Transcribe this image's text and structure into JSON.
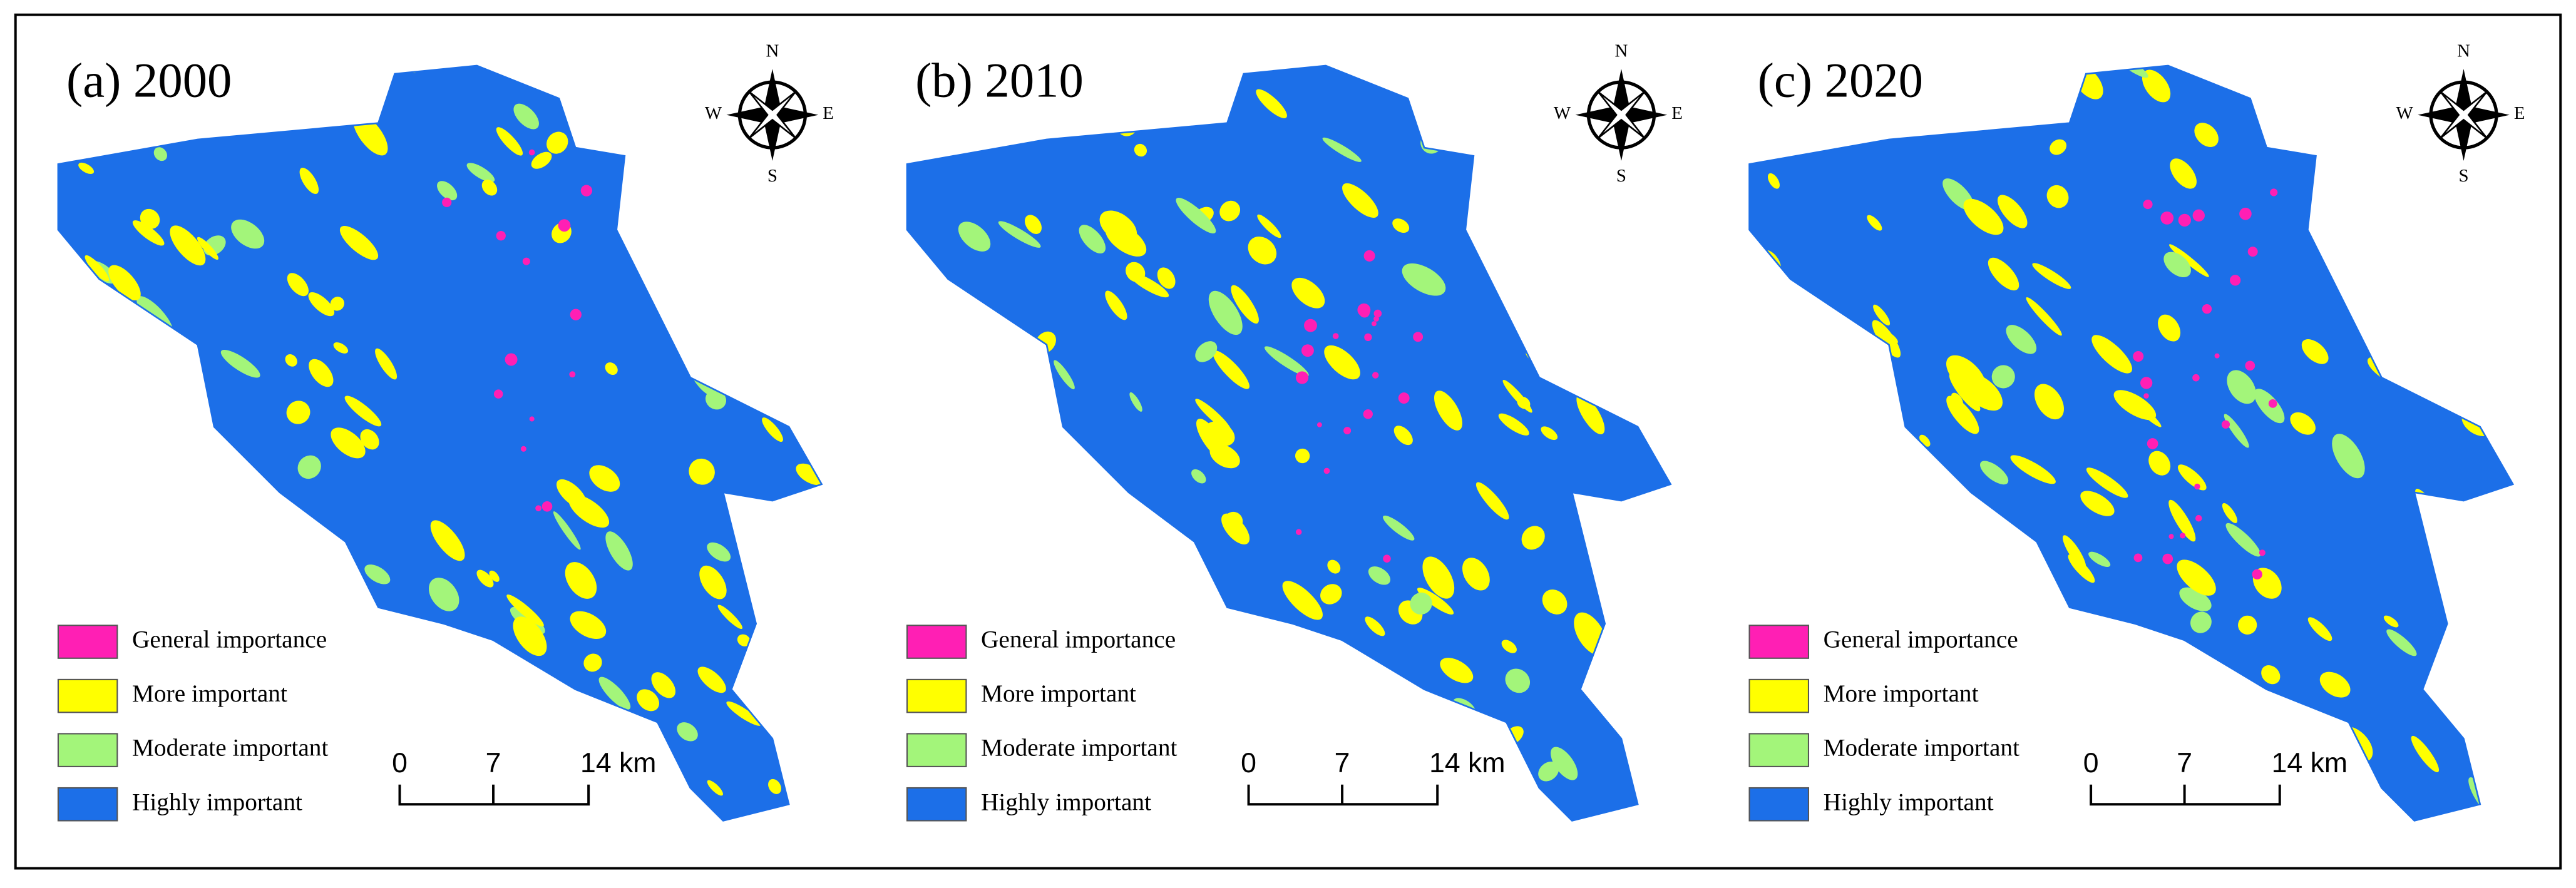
{
  "panels": [
    {
      "title": "(a) 2000",
      "compass": {
        "n": "N",
        "s": "S",
        "e": "E",
        "w": "W"
      },
      "legend": [
        {
          "label": "General importance",
          "color": "#ff1fb4"
        },
        {
          "label": "More important",
          "color": "#ffff00"
        },
        {
          "label": "Moderate important",
          "color": "#a3f57a"
        },
        {
          "label": "Highly important",
          "color": "#1c6fe8"
        }
      ],
      "scale": [
        "0",
        "7",
        "14 km"
      ]
    },
    {
      "title": "(b) 2010",
      "compass": {
        "n": "N",
        "s": "S",
        "e": "E",
        "w": "W"
      },
      "legend": [
        {
          "label": "General importance",
          "color": "#ff1fb4"
        },
        {
          "label": "More important",
          "color": "#ffff00"
        },
        {
          "label": "Moderate important",
          "color": "#a3f57a"
        },
        {
          "label": "Highly important",
          "color": "#1c6fe8"
        }
      ],
      "scale": [
        "0",
        "7",
        "14 km"
      ]
    },
    {
      "title": "(c) 2020",
      "compass": {
        "n": "N",
        "s": "S",
        "e": "E",
        "w": "W"
      },
      "legend": [
        {
          "label": "General importance",
          "color": "#ff1fb4"
        },
        {
          "label": "More important",
          "color": "#ffff00"
        },
        {
          "label": "Moderate important",
          "color": "#a3f57a"
        },
        {
          "label": "Highly important",
          "color": "#1c6fe8"
        }
      ],
      "scale": [
        "0",
        "7",
        "14 km"
      ]
    }
  ]
}
